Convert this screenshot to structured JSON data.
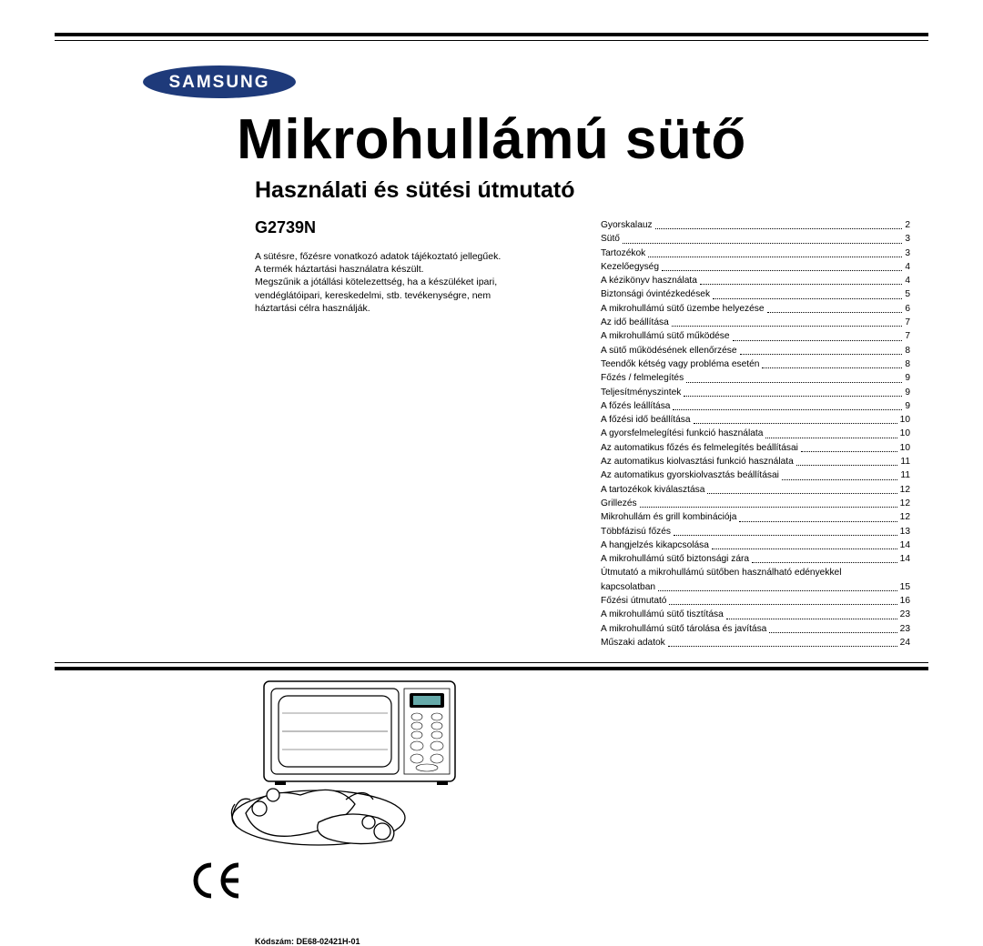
{
  "brand": "SAMSUNG",
  "title": "Mikrohullámú sütő",
  "subtitle": "Használati és sütési útmutató",
  "model": "G2739N",
  "blurb_lines": [
    "A sütésre, főzésre vonatkozó adatok tájékoztató jellegűek.",
    "A termék háztartási használatra készült.",
    "Megszűnik a jótállási kötelezettség, ha a készüléket ipari,",
    "vendéglátóipari, kereskedelmi, stb. tevékenységre, nem",
    "háztartási célra használják."
  ],
  "code_label": "Kódszám: DE68-02421H-01",
  "toc": [
    {
      "label": "Gyorskalauz",
      "page": "2"
    },
    {
      "label": "Sütő",
      "page": "3"
    },
    {
      "label": "Tartozékok",
      "page": "3"
    },
    {
      "label": "Kezelőegység",
      "page": "4"
    },
    {
      "label": "A kézikönyv használata",
      "page": "4"
    },
    {
      "label": "Biztonsági óvintézkedések",
      "page": "5"
    },
    {
      "label": "A mikrohullámú sütő üzembe helyezése",
      "page": "6"
    },
    {
      "label": "Az idő beállítása",
      "page": "7"
    },
    {
      "label": "A mikrohullámú sütő működése",
      "page": "7"
    },
    {
      "label": "A sütő működésének ellenőrzése",
      "page": "8"
    },
    {
      "label": "Teendők kétség vagy probléma esetén",
      "page": "8"
    },
    {
      "label": "Főzés / felmelegítés",
      "page": "9"
    },
    {
      "label": "Teljesítményszintek",
      "page": "9"
    },
    {
      "label": "A főzés leállítása",
      "page": "9"
    },
    {
      "label": "A főzési idő beállítása",
      "page": "10"
    },
    {
      "label": "A gyorsfelmelegítési funkció használata",
      "page": "10"
    },
    {
      "label": "Az automatikus főzés és felmelegítés beállításai",
      "page": "10"
    },
    {
      "label": "Az automatikus kiolvasztási funkció használata",
      "page": "11"
    },
    {
      "label": "Az automatikus gyorskiolvasztás beállításai",
      "page": "11"
    },
    {
      "label": "A tartozékok kiválasztása",
      "page": "12"
    },
    {
      "label": "Grillezés",
      "page": "12"
    },
    {
      "label": "Mikrohullám és grill kombinációja",
      "page": "12"
    },
    {
      "label": "Többfázisú főzés",
      "page": "13"
    },
    {
      "label": "A hangjelzés kikapcsolása",
      "page": "14"
    },
    {
      "label": "A mikrohullámú sütő biztonsági zára",
      "page": "14"
    },
    {
      "label": "Útmutató a mikrohullámú sütőben használható edényekkel kapcsolatban",
      "page": "15",
      "wrap": true
    },
    {
      "label": "Főzési útmutató",
      "page": "16"
    },
    {
      "label": "A mikrohullámú sütő tisztítása",
      "page": "23"
    },
    {
      "label": "A mikrohullámú sütő tárolása és javítása",
      "page": "23"
    },
    {
      "label": "Műszaki adatok",
      "page": "24"
    }
  ],
  "colors": {
    "text": "#000000",
    "background": "#ffffff",
    "logo_blue": "#1e3a7a"
  }
}
